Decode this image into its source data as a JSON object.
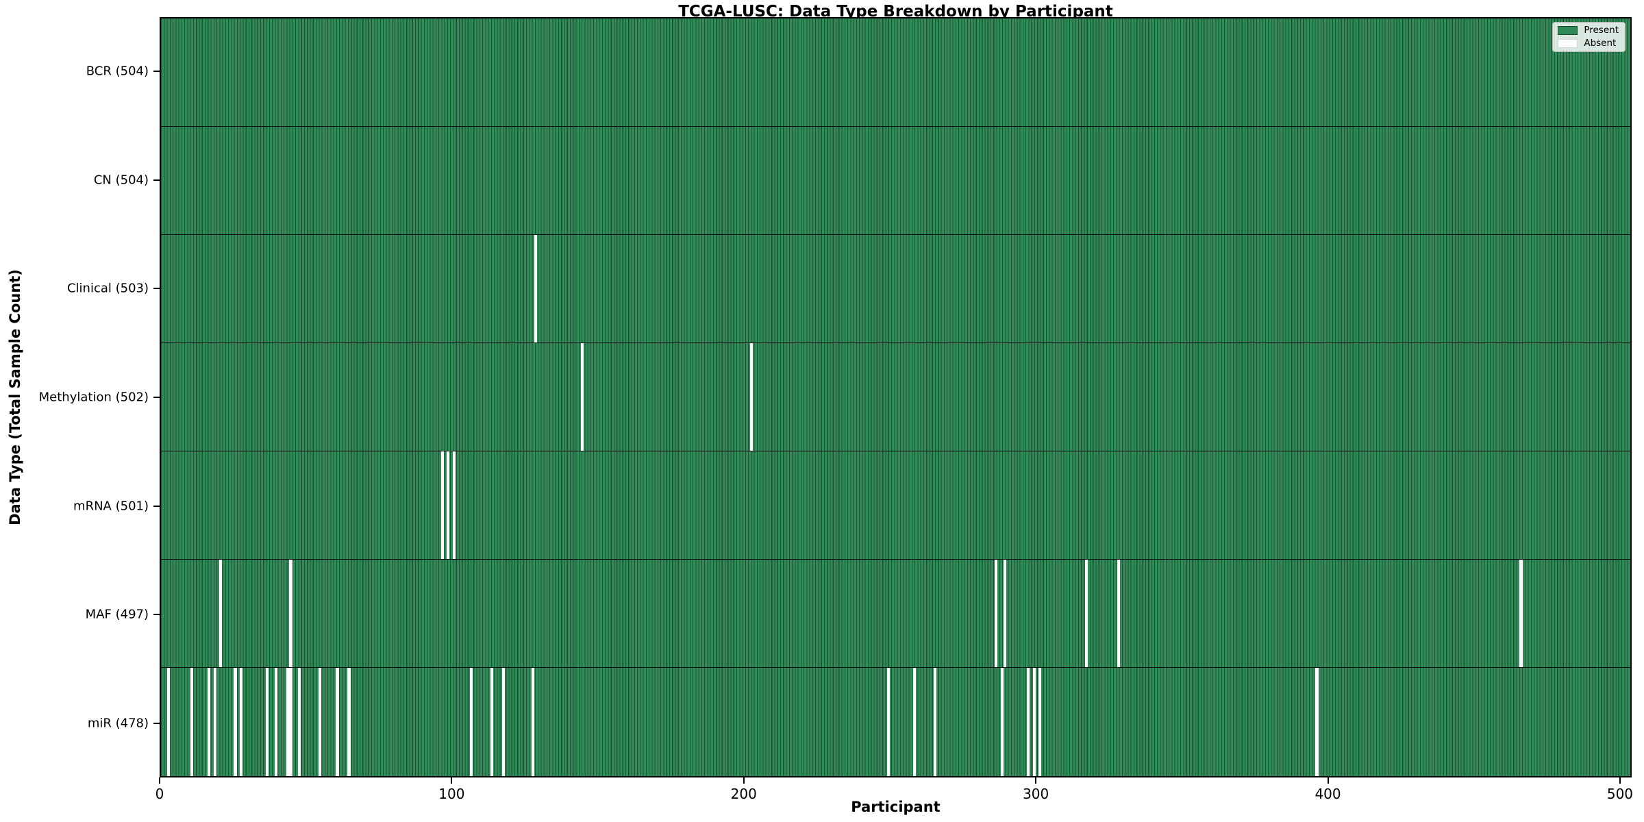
{
  "title": "TCGA-LUSC: Data Type Breakdown by Participant",
  "xlabel": "Participant",
  "ylabel": "Data Type (Total Sample Count)",
  "legend": {
    "present_label": "Present",
    "absent_label": "Absent"
  },
  "colors": {
    "present": "#2e8b57",
    "bar_edge": "#1d4f33",
    "absent": "#ffffff",
    "row_divider": "#0a0a0a"
  },
  "chart_data": {
    "type": "heatmap",
    "title": "TCGA-LUSC: Data Type Breakdown by Participant",
    "xlabel": "Participant",
    "ylabel": "Data Type (Total Sample Count)",
    "n_participants": 504,
    "xlim": [
      0,
      504
    ],
    "x_ticks": [
      0,
      100,
      200,
      300,
      400,
      500
    ],
    "legend_position": "upper right",
    "legend_entries": [
      "Present",
      "Absent"
    ],
    "grid": false,
    "rows": [
      {
        "name": "BCR",
        "label": "BCR (504)",
        "total": 504,
        "absent_participants": []
      },
      {
        "name": "CN",
        "label": "CN (504)",
        "total": 504,
        "absent_participants": []
      },
      {
        "name": "Clinical",
        "label": "Clinical (503)",
        "total": 503,
        "absent_participants": [
          128
        ]
      },
      {
        "name": "Methylation",
        "label": "Methylation (502)",
        "total": 502,
        "absent_participants": [
          144,
          202
        ]
      },
      {
        "name": "mRNA",
        "label": "mRNA (501)",
        "total": 501,
        "absent_participants": [
          96,
          98,
          100
        ]
      },
      {
        "name": "MAF",
        "label": "MAF (497)",
        "total": 497,
        "absent_participants": [
          20,
          44,
          286,
          289,
          317,
          328,
          466
        ]
      },
      {
        "name": "miR",
        "label": "miR (478)",
        "total": 478,
        "absent_participants": [
          2,
          10,
          16,
          18,
          25,
          27,
          36,
          39,
          43,
          44,
          47,
          54,
          60,
          64,
          106,
          113,
          117,
          127,
          249,
          258,
          265,
          288,
          297,
          299,
          301,
          396
        ]
      }
    ]
  }
}
